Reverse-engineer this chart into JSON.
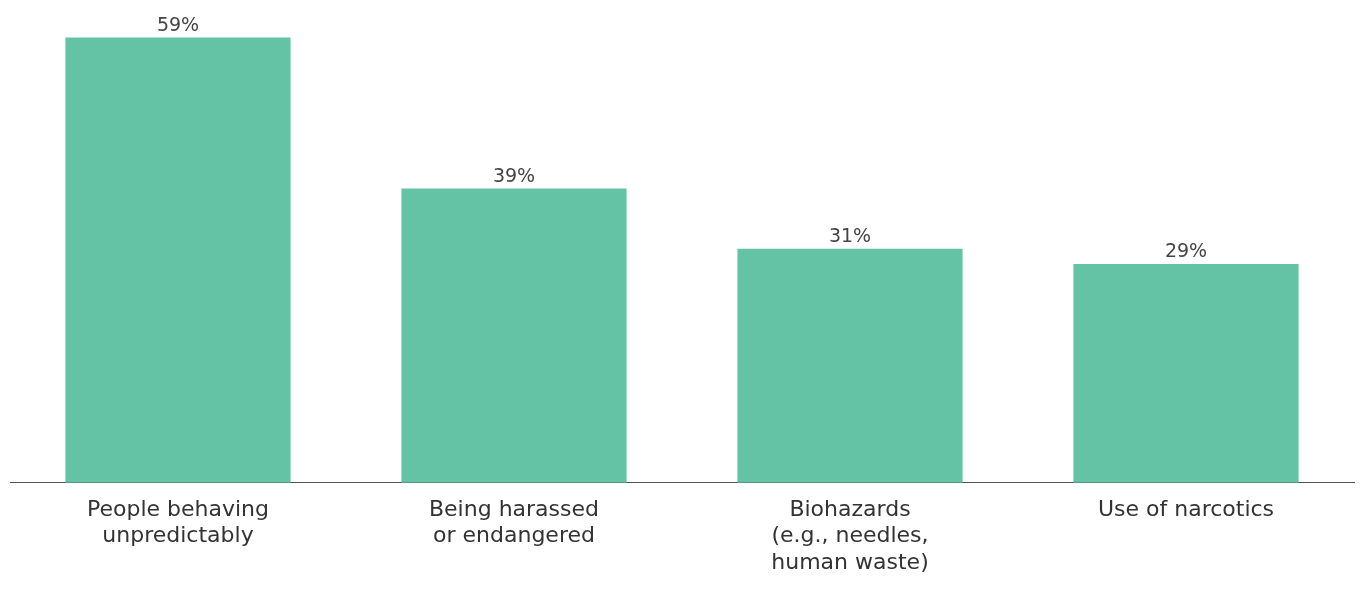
{
  "chart_data": {
    "type": "bar",
    "categories": [
      "People behaving unpredictably",
      "Being harassed or endangered",
      "Biohazards (e.g., needles, human waste)",
      "Use of narcotics"
    ],
    "values": [
      59,
      39,
      31,
      29
    ],
    "value_labels": [
      "59%",
      "39%",
      "31%",
      "29%"
    ],
    "color": "#64c3a5",
    "tick_labels": "x",
    "grid": false,
    "legend": false
  }
}
